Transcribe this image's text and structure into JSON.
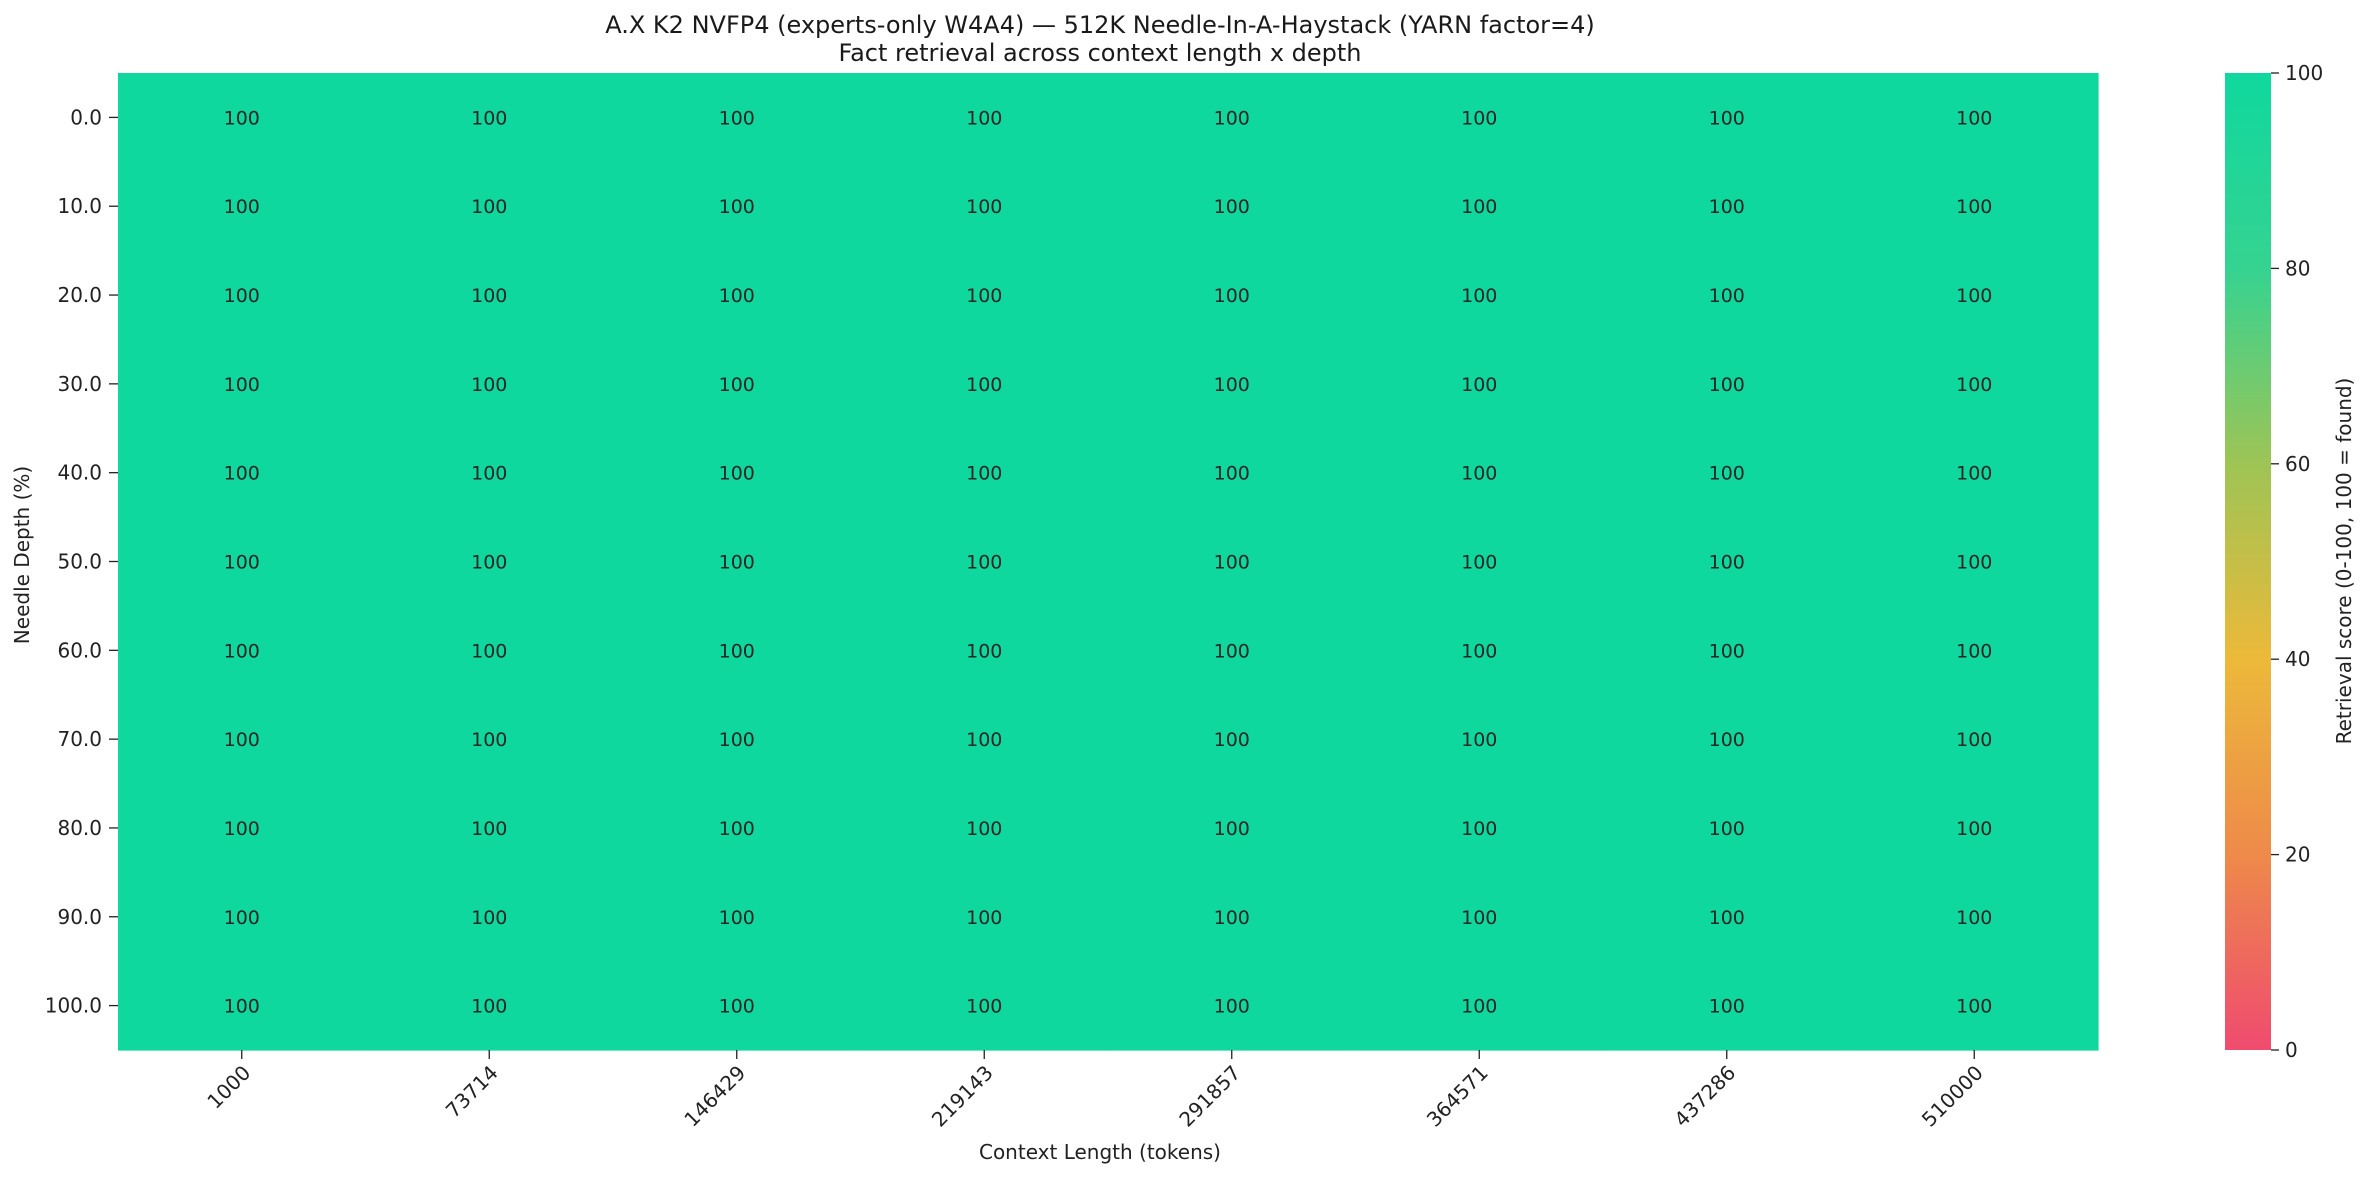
{
  "chart_data": {
    "type": "heatmap",
    "title": "A.X K2 NVFP4 (experts-only W4A4) — 512K Needle-In-A-Haystack (YARN factor=4)",
    "subtitle": "Fact retrieval across context length x depth",
    "xlabel": "Context Length (tokens)",
    "ylabel": "Needle Depth (%)",
    "x_categories": [
      "1000",
      "73714",
      "146429",
      "219143",
      "291857",
      "364571",
      "437286",
      "510000"
    ],
    "y_categories": [
      "0.0",
      "10.0",
      "20.0",
      "30.0",
      "40.0",
      "50.0",
      "60.0",
      "70.0",
      "80.0",
      "90.0",
      "100.0"
    ],
    "values": [
      [
        100,
        100,
        100,
        100,
        100,
        100,
        100,
        100
      ],
      [
        100,
        100,
        100,
        100,
        100,
        100,
        100,
        100
      ],
      [
        100,
        100,
        100,
        100,
        100,
        100,
        100,
        100
      ],
      [
        100,
        100,
        100,
        100,
        100,
        100,
        100,
        100
      ],
      [
        100,
        100,
        100,
        100,
        100,
        100,
        100,
        100
      ],
      [
        100,
        100,
        100,
        100,
        100,
        100,
        100,
        100
      ],
      [
        100,
        100,
        100,
        100,
        100,
        100,
        100,
        100
      ],
      [
        100,
        100,
        100,
        100,
        100,
        100,
        100,
        100
      ],
      [
        100,
        100,
        100,
        100,
        100,
        100,
        100,
        100
      ],
      [
        100,
        100,
        100,
        100,
        100,
        100,
        100,
        100
      ],
      [
        100,
        100,
        100,
        100,
        100,
        100,
        100,
        100
      ]
    ],
    "colorbar": {
      "label": "Retrieval score (0-100, 100 = found)",
      "range": [
        0,
        100
      ],
      "ticks": [
        0,
        20,
        40,
        60,
        80,
        100
      ],
      "colors": [
        "#ef4b6f",
        "#ee8a4a",
        "#ecb93a",
        "#9ec455",
        "#35d391",
        "#0fd89e"
      ]
    },
    "x_tick_rotation": -45,
    "grid": false
  }
}
